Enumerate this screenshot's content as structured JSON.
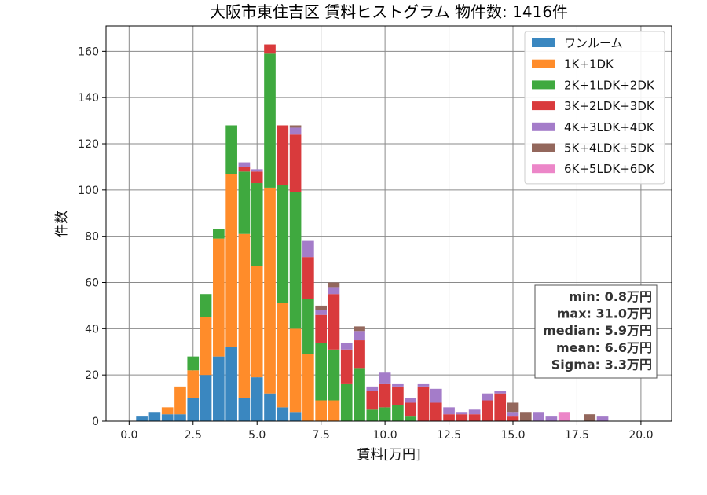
{
  "chart_data": {
    "type": "bar",
    "stacked": true,
    "title": "大阪市東住吉区 賃料ヒストグラム 物件数: 1416件",
    "xlabel": "賃料[万円]",
    "ylabel": "件数",
    "xlim": [
      -0.9,
      21.2
    ],
    "ylim": [
      0,
      171
    ],
    "xticks": [
      "0.0",
      "2.5",
      "5.0",
      "7.5",
      "10.0",
      "12.5",
      "15.0",
      "17.5",
      "20.0"
    ],
    "xtick_values": [
      0,
      2.5,
      5,
      7.5,
      10,
      12.5,
      15,
      17.5,
      20
    ],
    "yticks": [
      "0",
      "20",
      "40",
      "60",
      "80",
      "100",
      "120",
      "140",
      "160"
    ],
    "ytick_values": [
      0,
      20,
      40,
      60,
      80,
      100,
      120,
      140,
      160
    ],
    "grid": true,
    "legend_position": "top-right",
    "bin_width": 0.5,
    "bin_centers": [
      0.5,
      1.0,
      1.5,
      2.0,
      2.5,
      3.0,
      3.5,
      4.0,
      4.5,
      5.0,
      5.5,
      6.0,
      6.5,
      7.0,
      7.5,
      8.0,
      8.5,
      9.0,
      9.5,
      10.0,
      10.5,
      11.0,
      11.5,
      12.0,
      12.5,
      13.0,
      13.5,
      14.0,
      14.5,
      15.0,
      15.5,
      16.0,
      16.5,
      17.0,
      17.5,
      18.0,
      18.5
    ],
    "series": [
      {
        "name": "ワンルーム",
        "color": "#3a87c0",
        "values": [
          2,
          4,
          3,
          3,
          10,
          20,
          28,
          32,
          10,
          19,
          12,
          6,
          4,
          0,
          0,
          0,
          0,
          0,
          0,
          0,
          0,
          0,
          0,
          0,
          0,
          0,
          0,
          0,
          0,
          0,
          0,
          0,
          0,
          0,
          0,
          0,
          0
        ]
      },
      {
        "name": "1K+1DK",
        "color": "#ff8c2a",
        "values": [
          0,
          0,
          3,
          12,
          12,
          25,
          51,
          75,
          71,
          48,
          89,
          45,
          36,
          29,
          9,
          9,
          0,
          0,
          0,
          0,
          0,
          0,
          0,
          0,
          0,
          0,
          0,
          0,
          0,
          0,
          0,
          0,
          0,
          0,
          0,
          0,
          0
        ]
      },
      {
        "name": "2K+1LDK+2DK",
        "color": "#3fa93f",
        "values": [
          0,
          0,
          0,
          0,
          6,
          10,
          4,
          21,
          27,
          36,
          58,
          51,
          59,
          24,
          25,
          22,
          16,
          23,
          5,
          6,
          7,
          2,
          0,
          0,
          0,
          0,
          0,
          0,
          0,
          0,
          0,
          0,
          0,
          0,
          0,
          0,
          0
        ]
      },
      {
        "name": "3K+2LDK+3DK",
        "color": "#d93a3c",
        "values": [
          0,
          0,
          0,
          0,
          0,
          0,
          0,
          0,
          2,
          5,
          4,
          26,
          25,
          18,
          12,
          24,
          15,
          12,
          8,
          10,
          8,
          6,
          15,
          8,
          3,
          3,
          3,
          9,
          12,
          2,
          0,
          0,
          0,
          0,
          0,
          0,
          0
        ]
      },
      {
        "name": "4K+3LDK+4DK",
        "color": "#a47cc9",
        "values": [
          0,
          0,
          0,
          0,
          0,
          0,
          0,
          0,
          2,
          1,
          0,
          0,
          3,
          7,
          2,
          3,
          3,
          4,
          2,
          5,
          1,
          2,
          1,
          6,
          3,
          1,
          2,
          3,
          1,
          2,
          0,
          4,
          2,
          0,
          0,
          0,
          2
        ]
      },
      {
        "name": "5K+4LDK+5DK",
        "color": "#93675c",
        "values": [
          0,
          0,
          0,
          0,
          0,
          0,
          0,
          0,
          0,
          0,
          0,
          0,
          1,
          0,
          2,
          2,
          0,
          2,
          0,
          0,
          0,
          0,
          0,
          0,
          0,
          0,
          0,
          0,
          0,
          4,
          4,
          0,
          0,
          0,
          0,
          3,
          0
        ]
      },
      {
        "name": "6K+5LDK+6DK",
        "color": "#ec86c8",
        "values": [
          0,
          0,
          0,
          0,
          0,
          0,
          0,
          0,
          0,
          0,
          0,
          0,
          0,
          0,
          0,
          0,
          0,
          0,
          0,
          0,
          0,
          0,
          0,
          0,
          0,
          0,
          0,
          0,
          0,
          0,
          0,
          0,
          0,
          4,
          0,
          0,
          0
        ]
      }
    ],
    "stats_box": {
      "position": "bottom-right",
      "lines": [
        "min: 0.8万円",
        "max: 31.0万円",
        "median: 5.9万円",
        "mean: 6.6万円",
        "Sigma: 3.3万円"
      ]
    }
  }
}
